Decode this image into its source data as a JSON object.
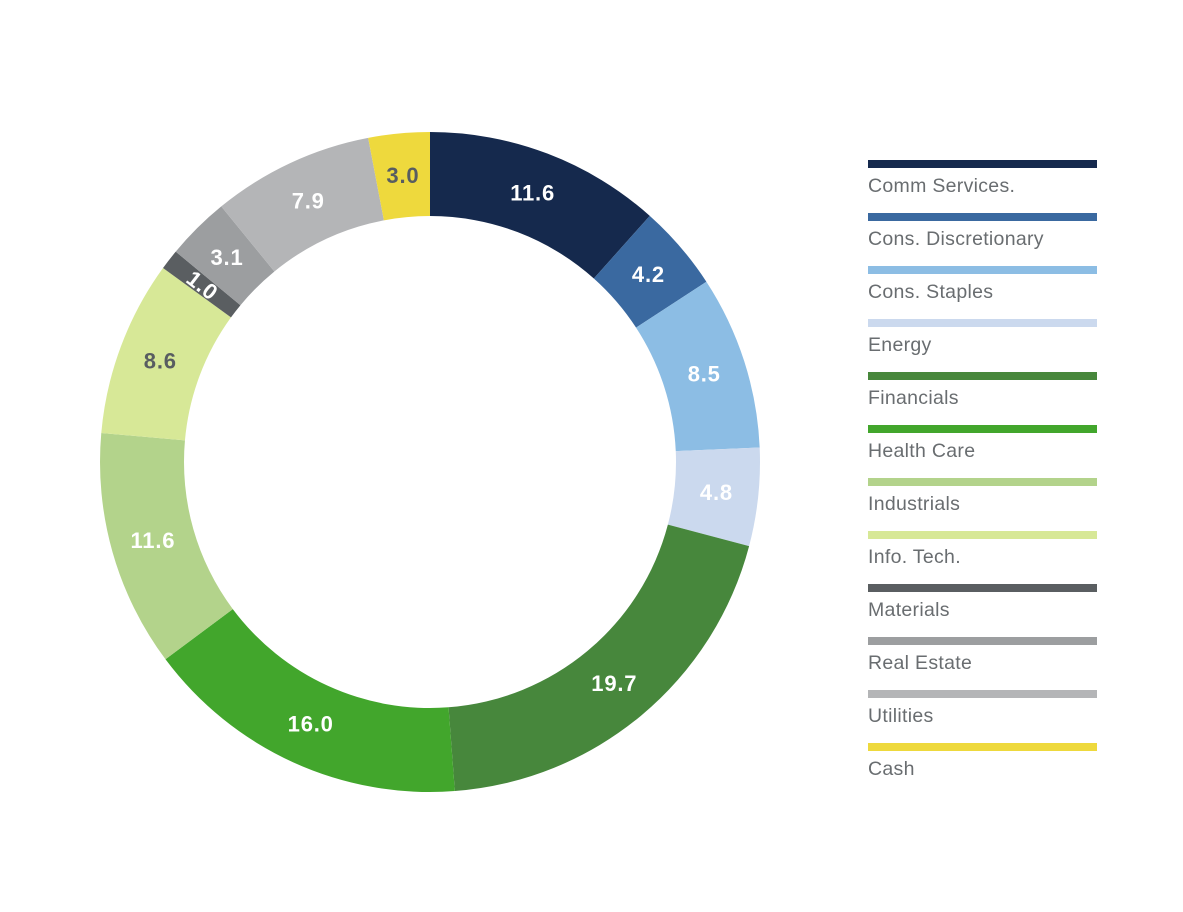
{
  "chart_data": {
    "type": "pie",
    "subtype": "donut",
    "title": "",
    "direction": "clockwise",
    "start_angle_deg": 0,
    "legend_position": "right",
    "total": 100.0,
    "legend_text_color": "#696d70",
    "segments": [
      {
        "label": "Comm Services.",
        "value": 11.6,
        "value_label": "11.6",
        "color": "#15294d",
        "value_label_color": "#ffffff"
      },
      {
        "label": "Cons. Discretionary",
        "value": 4.2,
        "value_label": "4.2",
        "color": "#3a69a0",
        "value_label_color": "#ffffff"
      },
      {
        "label": "Cons. Staples",
        "value": 8.5,
        "value_label": "8.5",
        "color": "#8cbde4",
        "value_label_color": "#ffffff"
      },
      {
        "label": "Energy",
        "value": 4.8,
        "value_label": "4.8",
        "color": "#cbd9ee",
        "value_label_color": "#ffffff"
      },
      {
        "label": "Financials",
        "value": 19.7,
        "value_label": "19.7",
        "color": "#47873c",
        "value_label_color": "#ffffff"
      },
      {
        "label": "Health Care",
        "value": 16.0,
        "value_label": "16.0",
        "color": "#42a62c",
        "value_label_color": "#ffffff"
      },
      {
        "label": "Industrials",
        "value": 11.6,
        "value_label": "11.6",
        "color": "#b3d38b",
        "value_label_color": "#ffffff"
      },
      {
        "label": "Info. Tech.",
        "value": 8.6,
        "value_label": "8.6",
        "color": "#d7e897",
        "value_label_color": "#585d61"
      },
      {
        "label": "Materials",
        "value": 1.0,
        "value_label": "1.0",
        "color": "#5a5e61",
        "value_label_color": "#ffffff"
      },
      {
        "label": "Real Estate",
        "value": 3.1,
        "value_label": "3.1",
        "color": "#9c9ea0",
        "value_label_color": "#ffffff"
      },
      {
        "label": "Utilities",
        "value": 7.9,
        "value_label": "7.9",
        "color": "#b4b5b7",
        "value_label_color": "#ffffff"
      },
      {
        "label": "Cash",
        "value": 3.0,
        "value_label": "3.0",
        "color": "#eed93d",
        "value_label_color": "#585d61"
      }
    ]
  }
}
